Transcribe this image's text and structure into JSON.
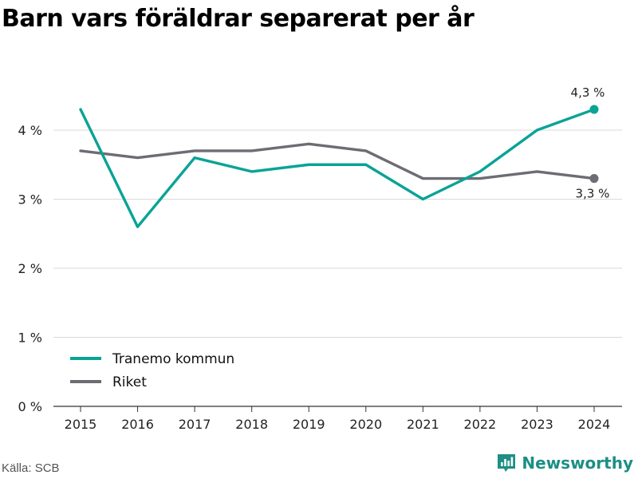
{
  "title": "Barn vars föräldrar separerat per år",
  "source": "Källa: SCB",
  "brand": {
    "name": "Newsworthy",
    "icon": "newsworthy-logo-icon",
    "color": "#1d8f85"
  },
  "chart_data": {
    "type": "line",
    "categories": [
      "2015",
      "2016",
      "2017",
      "2018",
      "2019",
      "2020",
      "2021",
      "2022",
      "2023",
      "2024"
    ],
    "series": [
      {
        "name": "Tranemo kommun",
        "color": "#0aa396",
        "values": [
          4.3,
          2.6,
          3.6,
          3.4,
          3.5,
          3.5,
          3.0,
          3.4,
          4.0,
          4.3
        ]
      },
      {
        "name": "Riket",
        "color": "#6e6c73",
        "values": [
          3.7,
          3.6,
          3.7,
          3.7,
          3.8,
          3.7,
          3.3,
          3.3,
          3.4,
          3.3
        ]
      }
    ],
    "yticks": [
      0,
      1,
      2,
      3,
      4
    ],
    "ytick_labels": [
      "0 %",
      "1 %",
      "2 %",
      "3 %",
      "4 %"
    ],
    "ylim": [
      0,
      5
    ],
    "end_labels": [
      "4,3 %",
      "3,3 %"
    ],
    "grid": true,
    "legend_position": "bottom-left",
    "xlabel": "",
    "ylabel": ""
  }
}
